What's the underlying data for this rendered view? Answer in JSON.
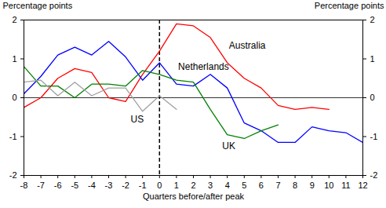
{
  "chart_data": {
    "type": "line",
    "x_label": "Quarters before/after peak",
    "y_label": "Percentage points",
    "y2_label": "Percentage points",
    "x": [
      -8,
      -7,
      -6,
      -5,
      -4,
      -3,
      -2,
      -1,
      0,
      1,
      2,
      3,
      4,
      5,
      6,
      7,
      8,
      9,
      10,
      11,
      12
    ],
    "series": [
      {
        "name": "Australia",
        "color": "#ff0000",
        "values": [
          -0.25,
          0.0,
          0.5,
          0.75,
          0.65,
          0.0,
          -0.1,
          0.6,
          1.2,
          1.9,
          1.85,
          1.55,
          0.9,
          0.5,
          0.25,
          -0.2,
          -0.3,
          -0.25,
          -0.3,
          null,
          null
        ]
      },
      {
        "name": "Netherlands",
        "color": "#0000ff",
        "values": [
          0.1,
          0.55,
          1.1,
          1.3,
          1.1,
          1.45,
          1.05,
          0.45,
          0.9,
          0.35,
          0.3,
          0.6,
          0.25,
          -0.65,
          -0.85,
          -1.15,
          -1.15,
          -0.75,
          -0.85,
          -0.9,
          -1.15
        ]
      },
      {
        "name": "UK",
        "color": "#008000",
        "values": [
          0.8,
          0.3,
          0.3,
          0.0,
          0.35,
          0.35,
          0.3,
          0.7,
          0.6,
          0.45,
          0.4,
          -0.3,
          -0.95,
          -1.05,
          -0.85,
          -0.7,
          null,
          null,
          null,
          null,
          null
        ]
      },
      {
        "name": "US",
        "color": "#a0a0a0",
        "values": [
          0.4,
          0.45,
          0.05,
          0.4,
          0.05,
          0.25,
          0.25,
          -0.35,
          0.05,
          -0.3,
          null,
          null,
          null,
          null,
          null,
          null,
          null,
          null,
          null,
          null,
          null
        ]
      }
    ],
    "annotations": [
      {
        "text": "Australia",
        "x": 4.1,
        "y": 1.35
      },
      {
        "text": "Netherlands",
        "x": 1.1,
        "y": 0.8
      },
      {
        "text": "US",
        "x": -1.7,
        "y": -0.55
      },
      {
        "text": "UK",
        "x": 3.7,
        "y": -1.25
      }
    ],
    "vline": {
      "x": 0,
      "line_style": "dashed"
    },
    "xlim": [
      -8,
      12
    ],
    "xticks": [
      -8,
      -7,
      -6,
      -5,
      -4,
      -3,
      -2,
      -1,
      0,
      1,
      2,
      3,
      4,
      5,
      6,
      7,
      8,
      9,
      10,
      11,
      12
    ],
    "ylim": [
      -2,
      2
    ],
    "yticks": [
      -2,
      -1,
      0,
      1,
      2
    ],
    "y2lim": [
      -2,
      2
    ],
    "y2ticks": [
      -2,
      -1,
      0,
      1,
      2
    ],
    "grid": false
  }
}
